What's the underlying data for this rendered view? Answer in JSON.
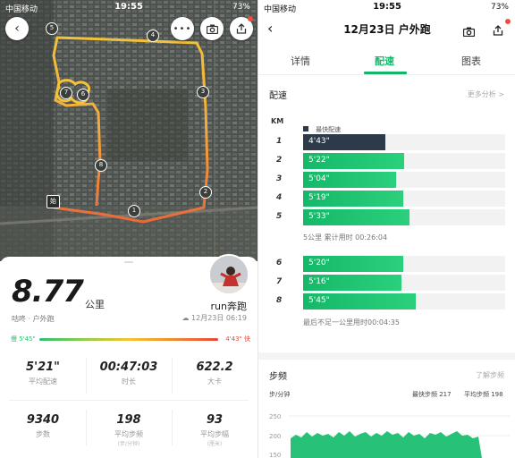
{
  "left": {
    "status": {
      "carrier": "中国移动",
      "time": "19:55",
      "battery": "73%"
    },
    "map": {
      "markers": [
        "1",
        "2",
        "3",
        "4",
        "5",
        "6",
        "7",
        "8"
      ],
      "start_label": "始"
    },
    "summary": {
      "distance": "8.77",
      "unit": "公里",
      "subtitle": "咕咚 · 户外跑",
      "user_name": "run奔跑",
      "date": "12月23日 06:19",
      "pace_slow_label": "慢 5'45\"",
      "pace_fast_label": "4'43\" 快"
    },
    "stats": [
      {
        "value": "5'21\"",
        "label": "平均配速",
        "sub": ""
      },
      {
        "value": "00:47:03",
        "label": "时长",
        "sub": ""
      },
      {
        "value": "622.2",
        "label": "大卡",
        "sub": ""
      },
      {
        "value": "9340",
        "label": "步数",
        "sub": ""
      },
      {
        "value": "198",
        "label": "平均步频",
        "sub": "(步/分钟)"
      },
      {
        "value": "93",
        "label": "平均步幅",
        "sub": "(厘米)"
      }
    ],
    "icons": [
      "back-icon",
      "more-icon",
      "camera-icon",
      "share-icon"
    ]
  },
  "right": {
    "status": {
      "carrier": "中国移动",
      "time": "19:55",
      "battery": "73%"
    },
    "title": "12月23日 户外跑",
    "tabs": [
      {
        "label": "详情",
        "active": false
      },
      {
        "label": "配速",
        "active": true
      },
      {
        "label": "图表",
        "active": false
      }
    ],
    "pace_section": {
      "title": "配速",
      "more": "更多分析 >",
      "km_header": "KM",
      "legend": "最快配速",
      "rows": [
        {
          "km": "1",
          "pace": "4'43\"",
          "seconds": 283,
          "fastest": true
        },
        {
          "km": "2",
          "pace": "5'22\"",
          "seconds": 322,
          "fastest": false
        },
        {
          "km": "3",
          "pace": "5'04\"",
          "seconds": 304,
          "fastest": false
        },
        {
          "km": "4",
          "pace": "5'19\"",
          "seconds": 319,
          "fastest": false
        },
        {
          "km": "5",
          "pace": "5'33\"",
          "seconds": 333,
          "fastest": false
        },
        {
          "km": "6",
          "pace": "5'20\"",
          "seconds": 320,
          "fastest": false
        },
        {
          "km": "7",
          "pace": "5'16\"",
          "seconds": 316,
          "fastest": false
        },
        {
          "km": "8",
          "pace": "5'45\"",
          "seconds": 345,
          "fastest": false
        }
      ],
      "note_5km": "5公里  累计用时 00:26:04",
      "note_last": "最后不足一公里用时00:04:35"
    },
    "cadence_section": {
      "title": "步频",
      "link": "了解步频",
      "unit": "步/分钟",
      "max_label": "最快步频 217",
      "avg_label": "平均步频 198",
      "y_ticks": [
        "250",
        "200",
        "150"
      ]
    },
    "colors": {
      "accent": "#16b56b",
      "fastest": "#2c3a4a",
      "bar": "#1fc06e"
    }
  }
}
